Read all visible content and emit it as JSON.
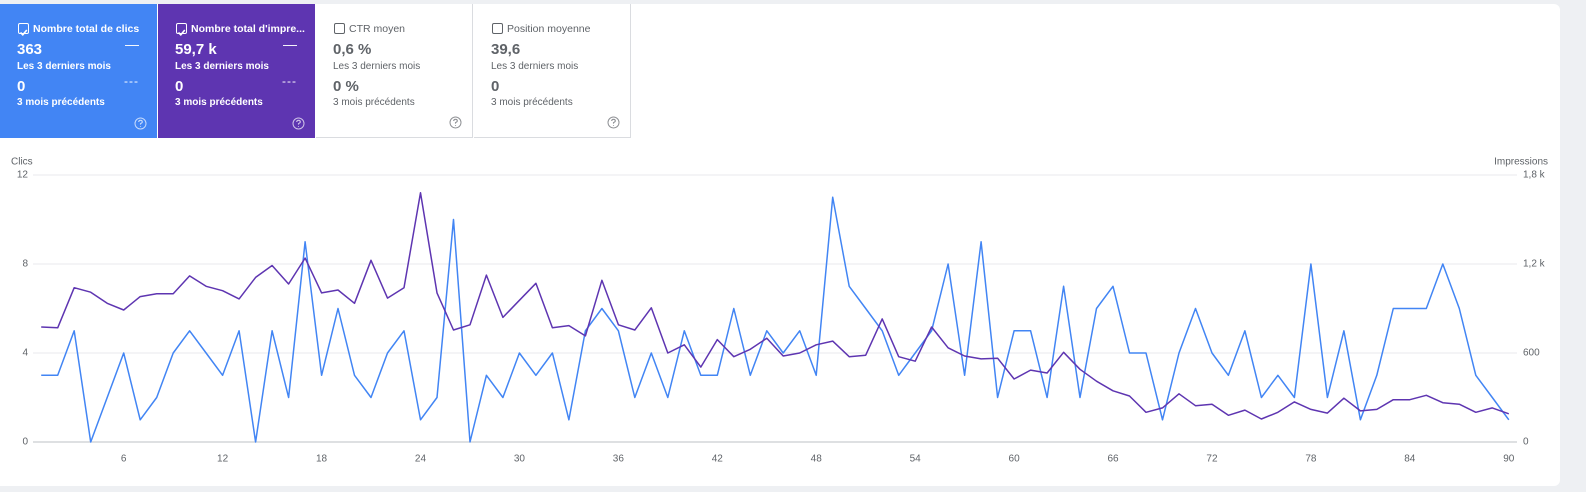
{
  "cards": [
    {
      "label": "Nombre total de clics",
      "value": "363",
      "period": "Les 3 derniers mois",
      "previous_value": "0",
      "previous_period": "3 mois précédents",
      "line_current": "—",
      "line_previous": "---",
      "checked": true,
      "color": "#4285f4"
    },
    {
      "label": "Nombre total d'impre...",
      "value": "59,7 k",
      "period": "Les 3 derniers mois",
      "previous_value": "0",
      "previous_period": "3 mois précédents",
      "line_current": "—",
      "line_previous": "---",
      "checked": true,
      "color": "#5e35b1"
    },
    {
      "label": "CTR moyen",
      "value": "0,6 %",
      "period": "Les 3 derniers mois",
      "previous_value": "0 %",
      "previous_period": "3 mois précédents",
      "checked": false
    },
    {
      "label": "Position moyenne",
      "value": "39,6",
      "period": "Les 3 derniers mois",
      "previous_value": "0",
      "previous_period": "3 mois précédents",
      "checked": false
    }
  ],
  "chart_data": {
    "type": "line",
    "y_label": "Clics",
    "y2_label": "Impressions",
    "x": [
      1,
      2,
      3,
      4,
      5,
      6,
      7,
      8,
      9,
      10,
      11,
      12,
      13,
      14,
      15,
      16,
      17,
      18,
      19,
      20,
      21,
      22,
      23,
      24,
      25,
      26,
      27,
      28,
      29,
      30,
      31,
      32,
      33,
      34,
      35,
      36,
      37,
      38,
      39,
      40,
      41,
      42,
      43,
      44,
      45,
      46,
      47,
      48,
      49,
      50,
      51,
      52,
      53,
      54,
      55,
      56,
      57,
      58,
      59,
      60,
      61,
      62,
      63,
      64,
      65,
      66,
      67,
      68,
      69,
      70,
      71,
      72,
      73,
      74,
      75,
      76,
      77,
      78,
      79,
      80,
      81,
      82,
      83,
      84,
      85,
      86,
      87,
      88,
      89,
      90
    ],
    "series": [
      {
        "name": "Clics",
        "color": "#4285f4",
        "values": [
          3,
          3,
          5,
          0,
          2,
          4,
          1,
          2,
          4,
          5,
          4,
          3,
          5,
          0,
          5,
          2,
          9,
          3,
          6,
          3,
          2,
          4,
          5,
          1,
          2,
          10,
          0,
          3,
          2,
          4,
          3,
          4,
          1,
          5,
          6,
          5,
          2,
          4,
          2,
          5,
          3,
          3,
          6,
          3,
          5,
          4,
          5,
          3,
          11,
          7,
          6,
          5,
          3,
          4,
          5,
          8,
          3,
          9,
          2,
          5,
          5,
          2,
          7,
          2,
          6,
          7,
          4,
          4,
          1,
          4,
          6,
          4,
          3,
          5,
          2,
          3,
          2,
          8,
          2,
          5,
          1,
          3,
          6,
          6,
          6,
          8,
          6,
          3,
          2,
          1
        ]
      },
      {
        "name": "Impressions",
        "color": "#5e35b1",
        "axis": "y2",
        "values": [
          775,
          770,
          1040,
          1010,
          935,
          890,
          980,
          1000,
          1000,
          1120,
          1050,
          1020,
          965,
          1110,
          1190,
          1065,
          1240,
          1005,
          1025,
          935,
          1225,
          970,
          1040,
          1680,
          1005,
          755,
          790,
          1125,
          840,
          955,
          1070,
          770,
          785,
          715,
          1090,
          790,
          755,
          905,
          600,
          655,
          505,
          690,
          575,
          625,
          700,
          580,
          600,
          655,
          680,
          575,
          585,
          830,
          575,
          545,
          775,
          635,
          580,
          560,
          565,
          425,
          485,
          465,
          605,
          490,
          410,
          345,
          310,
          200,
          230,
          325,
          245,
          255,
          180,
          215,
          155,
          200,
          270,
          220,
          195,
          295,
          210,
          220,
          285,
          285,
          315,
          265,
          255,
          200,
          230,
          190
        ]
      }
    ],
    "xlim": [
      0.5,
      90.5
    ],
    "xticks": [
      6,
      12,
      18,
      24,
      30,
      36,
      42,
      48,
      54,
      60,
      66,
      72,
      78,
      84,
      90
    ],
    "ylim": [
      0,
      12
    ],
    "yticks": [
      0,
      4,
      8,
      12
    ],
    "y2lim": [
      0,
      1800
    ],
    "y2ticks": [
      0,
      600,
      {
        "value": 1200,
        "label": "1,2 k"
      },
      {
        "value": 1800,
        "label": "1,8 k"
      }
    ],
    "grid": true
  }
}
